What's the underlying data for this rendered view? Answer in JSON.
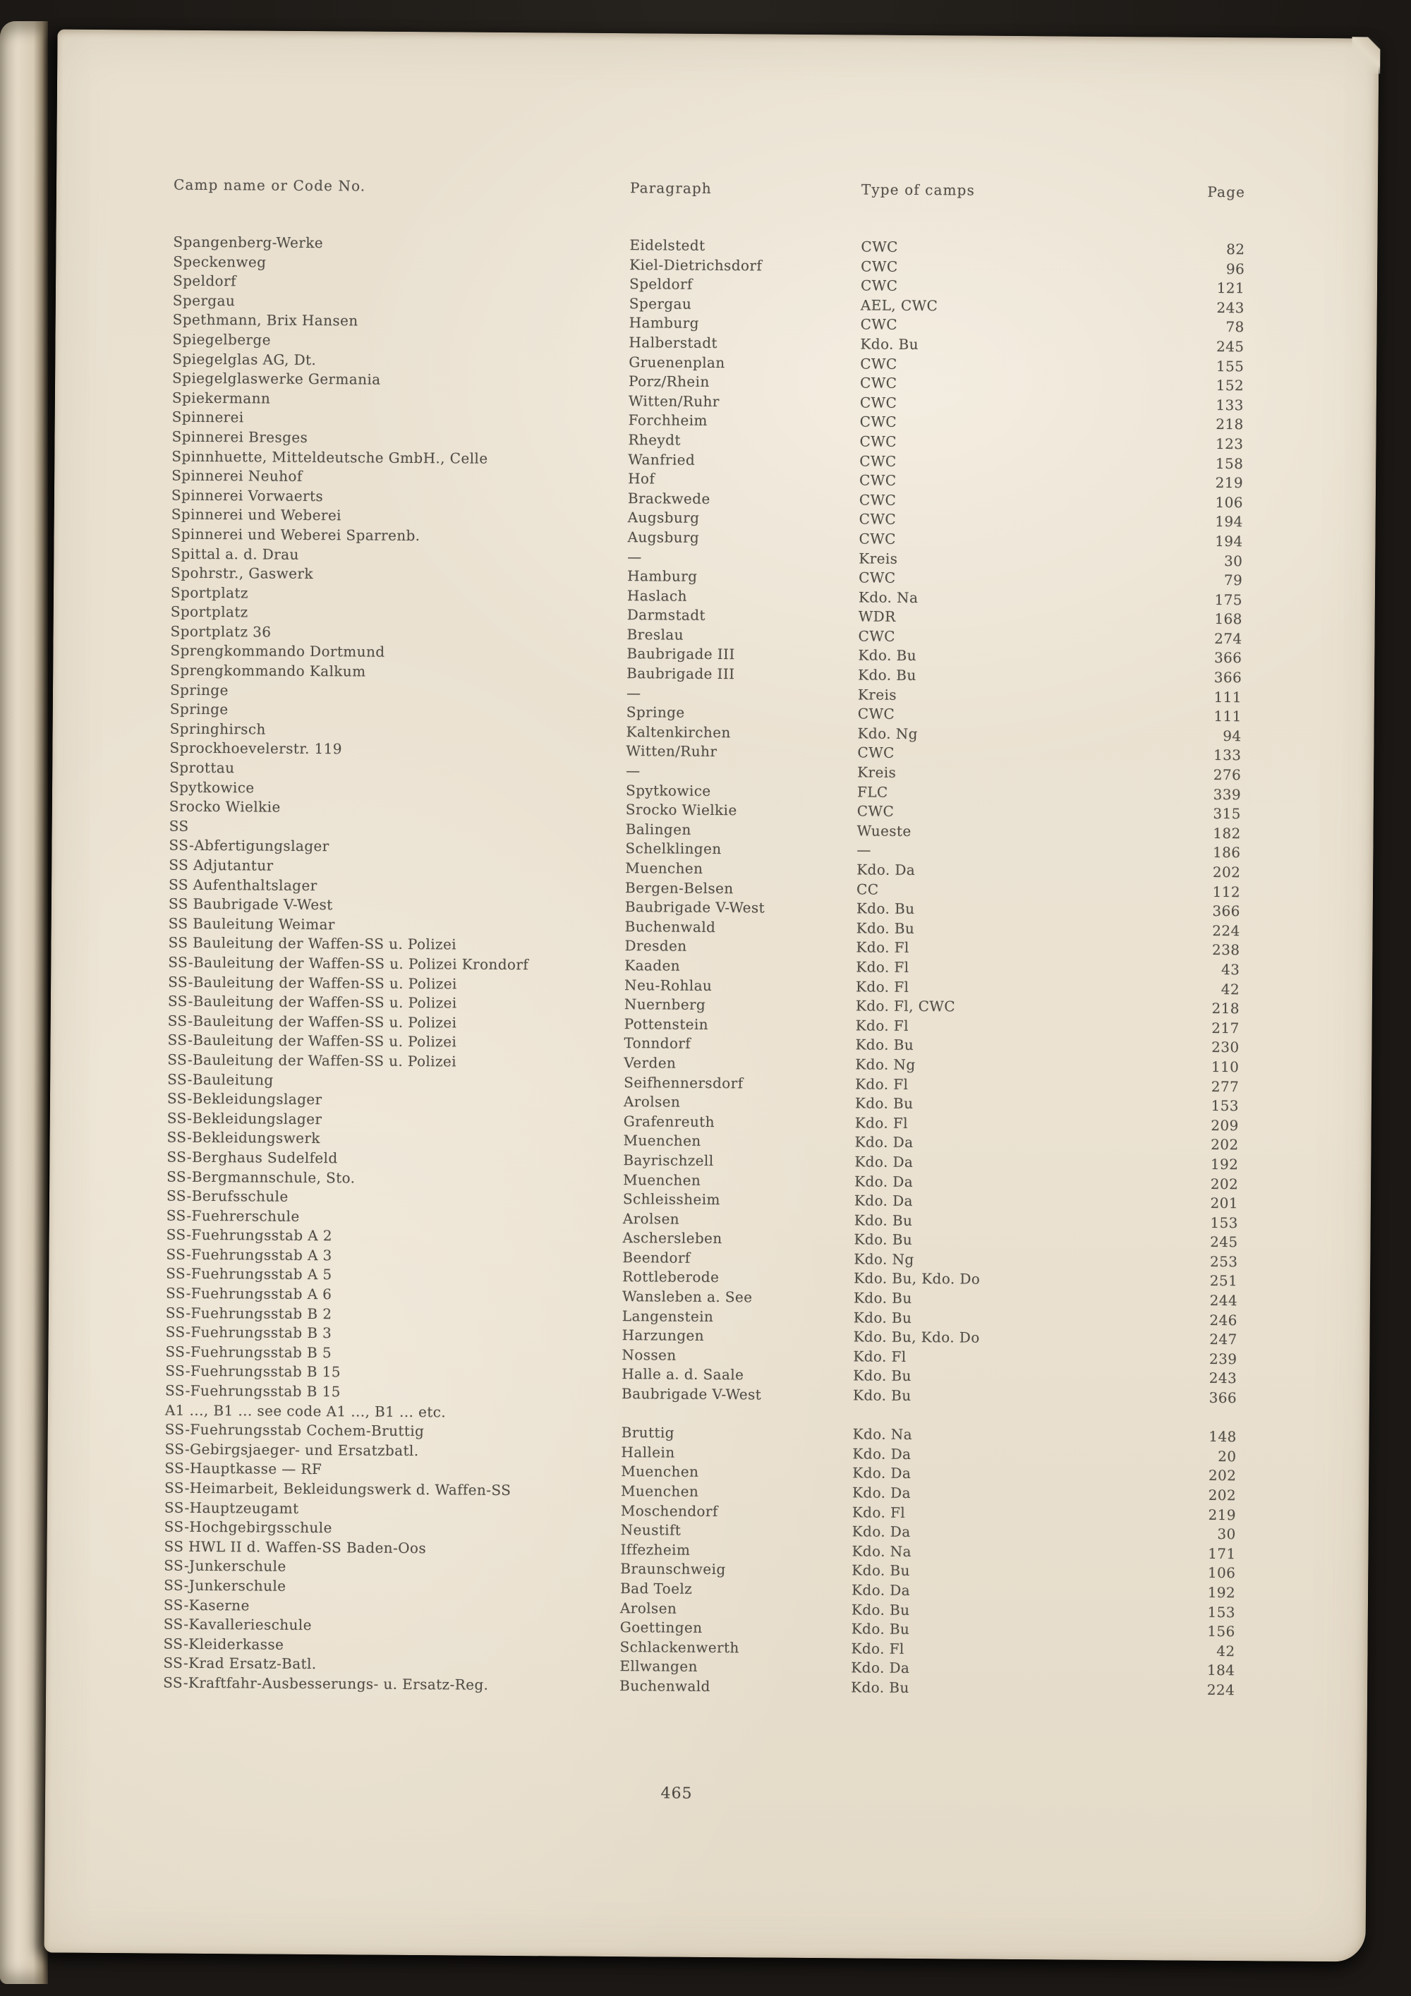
{
  "page": {
    "page_number": "465"
  },
  "colors": {
    "paper": "#e9e0d0",
    "ink": "#504d46",
    "surround": "#1b1815"
  },
  "table": {
    "headers": [
      "Camp name or Code No.",
      "Paragraph",
      "Type of camps",
      "Page"
    ],
    "rows": [
      [
        "Spangenberg-Werke",
        "Eidelstedt",
        "CWC",
        "82"
      ],
      [
        "Speckenweg",
        "Kiel-Dietrichsdorf",
        "CWC",
        "96"
      ],
      [
        "Speldorf",
        "Speldorf",
        "CWC",
        "121"
      ],
      [
        "Spergau",
        "Spergau",
        "AEL, CWC",
        "243"
      ],
      [
        "Spethmann, Brix Hansen",
        "Hamburg",
        "CWC",
        "78"
      ],
      [
        "Spiegelberge",
        "Halberstadt",
        "Kdo. Bu",
        "245"
      ],
      [
        "Spiegelglas AG, Dt.",
        "Gruenenplan",
        "CWC",
        "155"
      ],
      [
        "Spiegelglaswerke Germania",
        "Porz/Rhein",
        "CWC",
        "152"
      ],
      [
        "Spiekermann",
        "Witten/Ruhr",
        "CWC",
        "133"
      ],
      [
        "Spinnerei",
        "Forchheim",
        "CWC",
        "218"
      ],
      [
        "Spinnerei Bresges",
        "Rheydt",
        "CWC",
        "123"
      ],
      [
        "Spinnhuette, Mitteldeutsche GmbH., Celle",
        "Wanfried",
        "CWC",
        "158"
      ],
      [
        "Spinnerei Neuhof",
        "Hof",
        "CWC",
        "219"
      ],
      [
        "Spinnerei Vorwaerts",
        "Brackwede",
        "CWC",
        "106"
      ],
      [
        "Spinnerei und Weberei",
        "Augsburg",
        "CWC",
        "194"
      ],
      [
        "Spinnerei und Weberei Sparrenb.",
        "Augsburg",
        "CWC",
        "194"
      ],
      [
        "Spittal a. d. Drau",
        "—",
        "Kreis",
        "30"
      ],
      [
        "Spohrstr., Gaswerk",
        "Hamburg",
        "CWC",
        "79"
      ],
      [
        "Sportplatz",
        "Haslach",
        "Kdo. Na",
        "175"
      ],
      [
        "Sportplatz",
        "Darmstadt",
        "WDR",
        "168"
      ],
      [
        "Sportplatz 36",
        "Breslau",
        "CWC",
        "274"
      ],
      [
        "Sprengkommando Dortmund",
        "Baubrigade III",
        "Kdo. Bu",
        "366"
      ],
      [
        "Sprengkommando Kalkum",
        "Baubrigade III",
        "Kdo. Bu",
        "366"
      ],
      [
        "Springe",
        "—",
        "Kreis",
        "111"
      ],
      [
        "Springe",
        "Springe",
        "CWC",
        "111"
      ],
      [
        "Springhirsch",
        "Kaltenkirchen",
        "Kdo. Ng",
        "94"
      ],
      [
        "Sprockhoevelerstr. 119",
        "Witten/Ruhr",
        "CWC",
        "133"
      ],
      [
        "Sprottau",
        "—",
        "Kreis",
        "276"
      ],
      [
        "Spytkowice",
        "Spytkowice",
        "FLC",
        "339"
      ],
      [
        "Srocko Wielkie",
        "Srocko Wielkie",
        "CWC",
        "315"
      ],
      [
        "SS",
        "Balingen",
        "Wueste",
        "182"
      ],
      [
        "SS-Abfertigungslager",
        "Schelklingen",
        "—",
        "186"
      ],
      [
        "SS Adjutantur",
        "Muenchen",
        "Kdo. Da",
        "202"
      ],
      [
        "SS Aufenthaltslager",
        "Bergen-Belsen",
        "CC",
        "112"
      ],
      [
        "SS Baubrigade V-West",
        "Baubrigade V-West",
        "Kdo. Bu",
        "366"
      ],
      [
        "SS Bauleitung Weimar",
        "Buchenwald",
        "Kdo. Bu",
        "224"
      ],
      [
        "SS Bauleitung der Waffen-SS u. Polizei",
        "Dresden",
        "Kdo. Fl",
        "238"
      ],
      [
        "SS-Bauleitung der Waffen-SS u. Polizei Krondorf",
        "Kaaden",
        "Kdo. Fl",
        "43"
      ],
      [
        "SS-Bauleitung der Waffen-SS u. Polizei",
        "Neu-Rohlau",
        "Kdo. Fl",
        "42"
      ],
      [
        "SS-Bauleitung der Waffen-SS u. Polizei",
        "Nuernberg",
        "Kdo. Fl, CWC",
        "218"
      ],
      [
        "SS-Bauleitung der Waffen-SS u. Polizei",
        "Pottenstein",
        "Kdo. Fl",
        "217"
      ],
      [
        "SS-Bauleitung der Waffen-SS u. Polizei",
        "Tonndorf",
        "Kdo. Bu",
        "230"
      ],
      [
        "SS-Bauleitung der Waffen-SS u. Polizei",
        "Verden",
        "Kdo. Ng",
        "110"
      ],
      [
        "SS-Bauleitung",
        "Seifhennersdorf",
        "Kdo. Fl",
        "277"
      ],
      [
        "SS-Bekleidungslager",
        "Arolsen",
        "Kdo. Bu",
        "153"
      ],
      [
        "SS-Bekleidungslager",
        "Grafenreuth",
        "Kdo. Fl",
        "209"
      ],
      [
        "SS-Bekleidungswerk",
        "Muenchen",
        "Kdo. Da",
        "202"
      ],
      [
        "SS-Berghaus Sudelfeld",
        "Bayrischzell",
        "Kdo. Da",
        "192"
      ],
      [
        "SS-Bergmannschule, Sto.",
        "Muenchen",
        "Kdo. Da",
        "202"
      ],
      [
        "SS-Berufsschule",
        "Schleissheim",
        "Kdo. Da",
        "201"
      ],
      [
        "SS-Fuehrerschule",
        "Arolsen",
        "Kdo. Bu",
        "153"
      ],
      [
        "SS-Fuehrungsstab A 2",
        "Aschersleben",
        "Kdo. Bu",
        "245"
      ],
      [
        "SS-Fuehrungsstab A 3",
        "Beendorf",
        "Kdo. Ng",
        "253"
      ],
      [
        "SS-Fuehrungsstab A 5",
        "Rottleberode",
        "Kdo. Bu, Kdo. Do",
        "251"
      ],
      [
        "SS-Fuehrungsstab A 6",
        "Wansleben a. See",
        "Kdo. Bu",
        "244"
      ],
      [
        "SS-Fuehrungsstab B 2",
        "Langenstein",
        "Kdo. Bu",
        "246"
      ],
      [
        "SS-Fuehrungsstab B 3",
        "Harzungen",
        "Kdo. Bu, Kdo. Do",
        "247"
      ],
      [
        "SS-Fuehrungsstab B 5",
        "Nossen",
        "Kdo. Fl",
        "239"
      ],
      [
        "SS-Fuehrungsstab B 15",
        "Halle a. d. Saale",
        "Kdo. Bu",
        "243"
      ],
      [
        "SS-Fuehrungsstab B 15",
        "Baubrigade V-West",
        "Kdo. Bu",
        "366"
      ],
      [
        "A1 ..., B1 ... see code A1 ..., B1 ... etc.",
        "",
        "",
        ""
      ],
      [
        "SS-Fuehrungsstab Cochem-Bruttig",
        "Bruttig",
        "Kdo. Na",
        "148"
      ],
      [
        "SS-Gebirgsjaeger- und Ersatzbatl.",
        "Hallein",
        "Kdo. Da",
        "20"
      ],
      [
        "SS-Hauptkasse — RF",
        "Muenchen",
        "Kdo. Da",
        "202"
      ],
      [
        "SS-Heimarbeit, Bekleidungswerk d. Waffen-SS",
        "Muenchen",
        "Kdo. Da",
        "202"
      ],
      [
        "SS-Hauptzeugamt",
        "Moschendorf",
        "Kdo. Fl",
        "219"
      ],
      [
        "SS-Hochgebirgsschule",
        "Neustift",
        "Kdo. Da",
        "30"
      ],
      [
        "SS HWL II d. Waffen-SS Baden-Oos",
        "Iffezheim",
        "Kdo. Na",
        "171"
      ],
      [
        "SS-Junkerschule",
        "Braunschweig",
        "Kdo. Bu",
        "106"
      ],
      [
        "SS-Junkerschule",
        "Bad Toelz",
        "Kdo. Da",
        "192"
      ],
      [
        "SS-Kaserne",
        "Arolsen",
        "Kdo. Bu",
        "153"
      ],
      [
        "SS-Kavallerieschule",
        "Goettingen",
        "Kdo. Bu",
        "156"
      ],
      [
        "SS-Kleiderkasse",
        "Schlackenwerth",
        "Kdo. Fl",
        "42"
      ],
      [
        "SS-Krad Ersatz-Batl.",
        "Ellwangen",
        "Kdo. Da",
        "184"
      ],
      [
        "SS-Kraftfahr-Ausbesserungs- u. Ersatz-Reg.",
        "Buchenwald",
        "Kdo. Bu",
        "224"
      ]
    ]
  }
}
